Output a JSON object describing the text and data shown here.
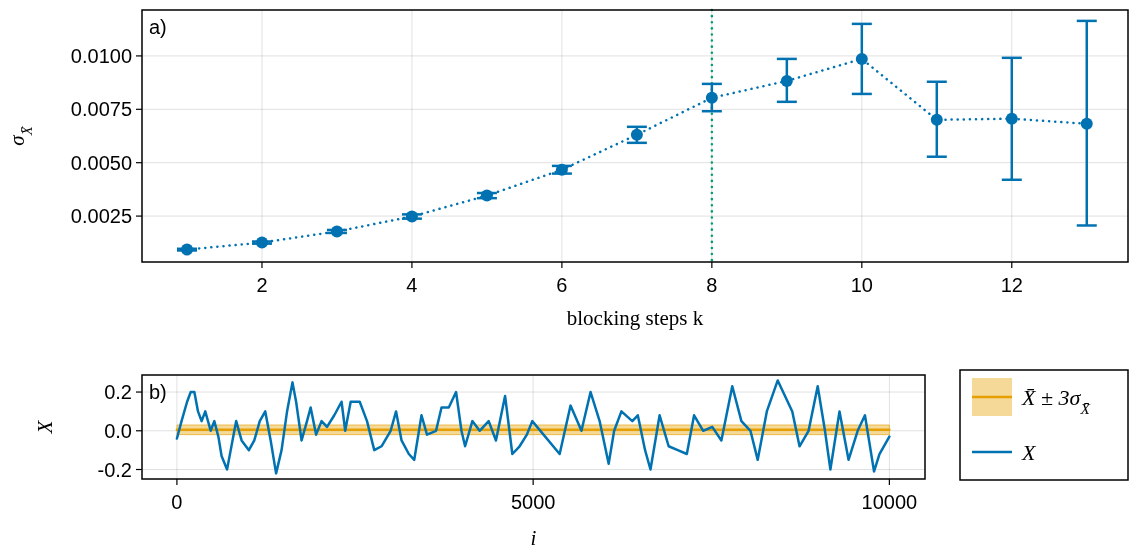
{
  "chart_data": [
    {
      "type": "line",
      "xlabel": "blocking steps k",
      "ylabel": "σ$_{X̄}$",
      "annotations": [
        "a)"
      ],
      "x": [
        1,
        2,
        3,
        4,
        5,
        6,
        7,
        8,
        9,
        10,
        11,
        12,
        13
      ],
      "series": [
        {
          "color": "#0072b2",
          "values": [
            0.00093,
            0.00126,
            0.00178,
            0.00248,
            0.00346,
            0.00467,
            0.00631,
            0.00804,
            0.00883,
            0.00986,
            0.00701,
            0.00706,
            0.00682
          ],
          "errors": [
            4e-05,
            5e-05,
            7e-05,
            0.0001,
            0.00012,
            0.00018,
            [
              0.00593,
              0.00668
            ],
            [
              0.00741,
              0.00869
            ],
            [
              0.00785,
              0.00986
            ],
            [
              0.00822,
              0.0115
            ],
            [
              0.00528,
              0.00879
            ],
            [
              0.0042,
              0.00991
            ],
            [
              0.00206,
              0.01164
            ]
          ]
        }
      ],
      "xlim": [
        0.4,
        13.55
      ],
      "ylim": [
        0.00035,
        0.01215
      ],
      "xticks": [
        2,
        4,
        6,
        8,
        10,
        12
      ],
      "yticks": [
        {
          "value": 0.0025,
          "label": "0.0025"
        },
        {
          "value": 0.005,
          "label": "0.0050"
        },
        {
          "value": 0.0075,
          "label": "0.0075"
        },
        {
          "value": 0.01,
          "label": "0.0100"
        }
      ],
      "ref_lines": [
        {
          "axis": "x",
          "value": 8,
          "color": "#009e73",
          "line_style": "dotted"
        }
      ],
      "grid": true,
      "marker": "circle",
      "line_style": "dotted"
    },
    {
      "type": "line",
      "xlabel": "i",
      "ylabel": "X",
      "annotations": [
        "b)"
      ],
      "series": [
        {
          "name": "X̄ ± 3σ$_{X̄}$",
          "color": "#e69f00",
          "x": [
            0,
            10000
          ],
          "values": [
            0.005,
            0.005
          ],
          "lower": [
            -0.02,
            -0.02
          ],
          "upper": [
            0.03,
            0.03
          ]
        },
        {
          "name": "X",
          "color": "#0072b2",
          "x": [
            0,
            65,
            143,
            194,
            245,
            296,
            347,
            398,
            474,
            525,
            582,
            627,
            704,
            755,
            832,
            908,
            1010,
            1086,
            1163,
            1240,
            1316,
            1392,
            1469,
            1546,
            1622,
            1673,
            1750,
            1826,
            1877,
            1954,
            2030,
            2107,
            2209,
            2311,
            2362,
            2439,
            2566,
            2668,
            2770,
            2872,
            3000,
            3076,
            3153,
            3255,
            3331,
            3433,
            3510,
            3637,
            3714,
            3816,
            3918,
            3994,
            4045,
            4147,
            4249,
            4376,
            4478,
            4606,
            4708,
            4810,
            4912,
            4988,
            5372,
            5525,
            5678,
            5806,
            5933,
            6060,
            6137,
            6239,
            6392,
            6469,
            6571,
            6647,
            6775,
            6902,
            7030,
            7157,
            7259,
            7387,
            7514,
            7642,
            7795,
            7923,
            8050,
            8152,
            8280,
            8433,
            8535,
            8637,
            8739,
            8866,
            8994,
            9096,
            9172,
            9300,
            9427,
            9555,
            9657,
            9785,
            9861,
            10000
          ],
          "values": [
            -0.04,
            0.05,
            0.15,
            0.2,
            0.2,
            0.1,
            0.05,
            0.1,
            0.0,
            0.05,
            -0.03,
            -0.13,
            -0.2,
            -0.1,
            0.05,
            -0.05,
            -0.1,
            -0.05,
            0.05,
            0.1,
            -0.05,
            -0.22,
            -0.1,
            0.1,
            0.25,
            0.15,
            -0.05,
            0.05,
            0.12,
            -0.02,
            0.05,
            0.02,
            0.08,
            0.15,
            0.0,
            0.15,
            0.15,
            0.05,
            -0.1,
            -0.08,
            0.0,
            0.1,
            -0.05,
            -0.12,
            -0.15,
            0.08,
            -0.02,
            0.0,
            0.12,
            0.12,
            0.2,
            0.0,
            -0.08,
            0.05,
            0.0,
            0.05,
            -0.05,
            0.18,
            -0.12,
            -0.08,
            -0.02,
            0.05,
            -0.12,
            0.13,
            0.0,
            0.2,
            0.05,
            -0.17,
            0.0,
            0.1,
            0.05,
            0.08,
            -0.1,
            -0.2,
            0.08,
            -0.08,
            -0.1,
            -0.12,
            0.08,
            0.0,
            0.02,
            -0.05,
            0.23,
            0.05,
            0.0,
            -0.15,
            0.1,
            0.26,
            0.18,
            0.1,
            -0.08,
            0.0,
            0.23,
            0.0,
            -0.2,
            0.1,
            -0.15,
            0.0,
            0.08,
            -0.21,
            -0.12,
            -0.03
          ]
        }
      ],
      "xlim": [
        -490,
        10500
      ],
      "ylim": [
        -0.249,
        0.288
      ],
      "xticks": [
        0,
        5000,
        10000
      ],
      "yticks": [
        -0.2,
        {
          "value": 0,
          "label": "0.0"
        },
        0.2
      ],
      "grid": true,
      "legend": "right",
      "line_style": "solid"
    }
  ]
}
